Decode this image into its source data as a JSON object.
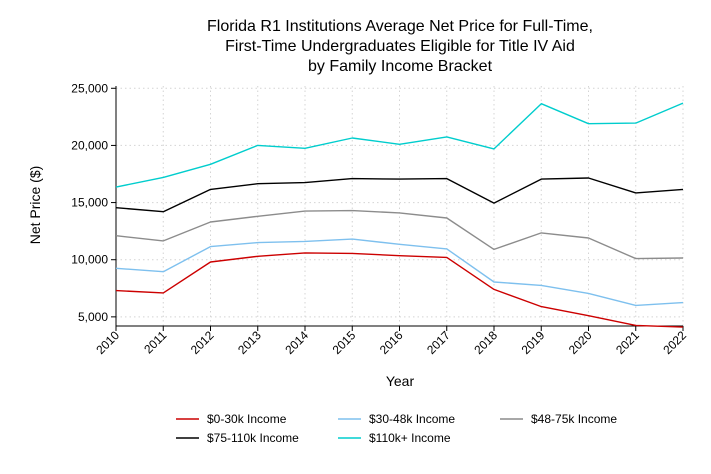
{
  "chart_data": {
    "type": "line",
    "title_lines": [
      "Florida R1 Institutions Average Net Price for Full-Time,",
      "First-Time Undergraduates Eligible for Title IV Aid",
      "by Family Income Bracket"
    ],
    "xlabel": "Year",
    "ylabel": "Net Price ($)",
    "x": [
      2010,
      2011,
      2012,
      2013,
      2014,
      2015,
      2016,
      2017,
      2018,
      2019,
      2020,
      2021,
      2022
    ],
    "x_tick_labels": [
      "2010",
      "2011",
      "2012",
      "2013",
      "2014",
      "2015",
      "2016",
      "2017",
      "2018",
      "2019",
      "2020",
      "2021",
      "2022"
    ],
    "y_ticks": [
      5000,
      10000,
      15000,
      20000,
      25000
    ],
    "y_tick_labels": [
      "5,000",
      "10,000",
      "15,000",
      "20,000",
      "25,000"
    ],
    "ylim": [
      4200,
      25200
    ],
    "grid": true,
    "legend_position": "bottom",
    "series": [
      {
        "name": "$0-30k Income",
        "color": "#cc0000",
        "values": [
          7300,
          7100,
          9800,
          10300,
          10600,
          10550,
          10350,
          10200,
          7400,
          5900,
          5100,
          4250,
          4100
        ]
      },
      {
        "name": "$30-48k Income",
        "color": "#7ec0ee",
        "values": [
          9250,
          8950,
          11150,
          11500,
          11600,
          11800,
          11350,
          10950,
          8050,
          7750,
          7050,
          6000,
          6250
        ]
      },
      {
        "name": "$48-75k Income",
        "color": "#8c8c8c",
        "values": [
          12100,
          11650,
          13300,
          13800,
          14250,
          14300,
          14100,
          13650,
          10900,
          12350,
          11900,
          10100,
          10150
        ]
      },
      {
        "name": "$75-110k Income",
        "color": "#000000",
        "values": [
          14550,
          14200,
          16150,
          16650,
          16750,
          17100,
          17050,
          17100,
          14950,
          17050,
          17150,
          15850,
          16150
        ]
      },
      {
        "name": "$110k+ Income",
        "color": "#00cdcd",
        "values": [
          16350,
          17200,
          18350,
          20000,
          19750,
          20650,
          20100,
          20750,
          19700,
          23650,
          21900,
          21950,
          23700
        ]
      }
    ]
  }
}
